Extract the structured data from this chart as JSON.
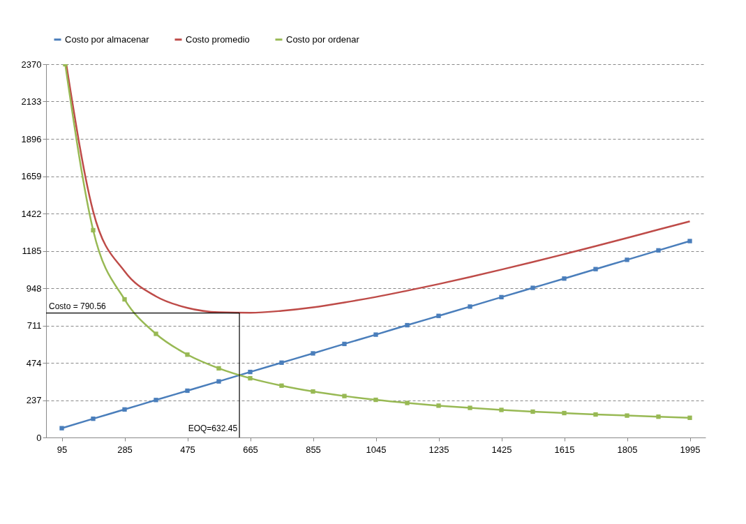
{
  "chart_data": {
    "type": "line",
    "legend": "top",
    "grid": "y",
    "line_style": "solid",
    "xlim": [
      47.5,
      2042.5
    ],
    "xticks": [
      95,
      285,
      475,
      665,
      855,
      1045,
      1235,
      1425,
      1615,
      1805,
      1995
    ],
    "ylim": [
      0,
      2370
    ],
    "yticks": [
      0,
      237,
      474,
      711,
      948,
      1185,
      1422,
      1659,
      1896,
      2133,
      2370
    ],
    "series": [
      {
        "name": "Costo por almacenar",
        "color": "#4a7ebb",
        "marker": "square",
        "x": [
          95,
          190,
          285,
          380,
          475,
          570,
          665,
          760,
          855,
          950,
          1045,
          1140,
          1235,
          1330,
          1425,
          1520,
          1615,
          1710,
          1805,
          1900,
          1995
        ],
        "values": [
          59,
          119,
          178,
          238,
          297,
          356,
          416,
          475,
          534,
          594,
          653,
          713,
          772,
          831,
          891,
          950,
          1009,
          1069,
          1128,
          1188,
          1247
        ]
      },
      {
        "name": "Costo promedio",
        "color": "#be4b48",
        "marker": "none",
        "x": [
          108.6,
          190,
          285,
          380,
          475,
          570,
          665,
          760,
          855,
          950,
          1045,
          1140,
          1235,
          1330,
          1425,
          1520,
          1615,
          1710,
          1805,
          1900,
          1995
        ],
        "values": [
          2370,
          1435,
          1055,
          896,
          823,
          795,
          792,
          804,
          826,
          857,
          892,
          932,
          974,
          1019,
          1066,
          1114,
          1164,
          1215,
          1267,
          1320,
          1372
        ]
      },
      {
        "name": "Costo por ordenar",
        "color": "#98b954",
        "marker": "square",
        "x": [
          105.5,
          190,
          285,
          380,
          475,
          570,
          665,
          760,
          855,
          950,
          1045,
          1140,
          1235,
          1330,
          1425,
          1520,
          1615,
          1710,
          1805,
          1900,
          1995
        ],
        "values": [
          2370,
          1316,
          877,
          658,
          526,
          439,
          376,
          329,
          292,
          263,
          239,
          219,
          202,
          188,
          175,
          164,
          155,
          146,
          139,
          132,
          125
        ]
      }
    ],
    "ref_lines": [
      {
        "axis": "y",
        "value": 790.56,
        "label": "Costo = 790.56",
        "color": "#000000"
      },
      {
        "axis": "x",
        "value": 632.45,
        "label": "EOQ=632.45",
        "color": "#000000"
      }
    ]
  }
}
